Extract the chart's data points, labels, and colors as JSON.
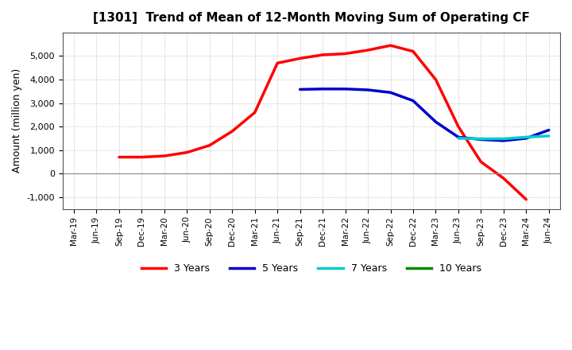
{
  "title": "[1301]  Trend of Mean of 12-Month Moving Sum of Operating CF",
  "ylabel": "Amount (million yen)",
  "background_color": "#ffffff",
  "grid_color": "#aaaaaa",
  "x_ticks": [
    "Mar-19",
    "Jun-19",
    "Sep-19",
    "Dec-19",
    "Mar-20",
    "Jun-20",
    "Sep-20",
    "Dec-20",
    "Mar-21",
    "Jun-21",
    "Sep-21",
    "Dec-21",
    "Mar-22",
    "Jun-22",
    "Sep-22",
    "Dec-22",
    "Mar-23",
    "Jun-23",
    "Sep-23",
    "Dec-23",
    "Mar-24",
    "Jun-24"
  ],
  "ylim": [
    -1500,
    6000
  ],
  "yticks": [
    -1000,
    0,
    1000,
    2000,
    3000,
    4000,
    5000
  ],
  "series": {
    "3 Years": {
      "color": "#ff0000",
      "data": [
        null,
        null,
        700,
        700,
        750,
        900,
        1200,
        1800,
        2600,
        4700,
        4900,
        5050,
        5100,
        5250,
        5450,
        5200,
        4000,
        2000,
        500,
        -200,
        -1100,
        null
      ]
    },
    "5 Years": {
      "color": "#0000cc",
      "data": [
        null,
        null,
        null,
        null,
        null,
        null,
        null,
        null,
        null,
        null,
        3580,
        3600,
        3600,
        3560,
        3450,
        3100,
        2200,
        1550,
        1450,
        1400,
        1500,
        1850
      ]
    },
    "7 Years": {
      "color": "#00cccc",
      "data": [
        null,
        null,
        null,
        null,
        null,
        null,
        null,
        null,
        null,
        null,
        null,
        null,
        null,
        null,
        null,
        null,
        null,
        1500,
        1480,
        1480,
        1550,
        1600
      ]
    },
    "10 Years": {
      "color": "#008800",
      "data": [
        null,
        null,
        null,
        null,
        null,
        null,
        null,
        null,
        null,
        null,
        null,
        null,
        null,
        null,
        null,
        null,
        null,
        null,
        null,
        null,
        null,
        null
      ]
    }
  },
  "legend_order": [
    "3 Years",
    "5 Years",
    "7 Years",
    "10 Years"
  ]
}
